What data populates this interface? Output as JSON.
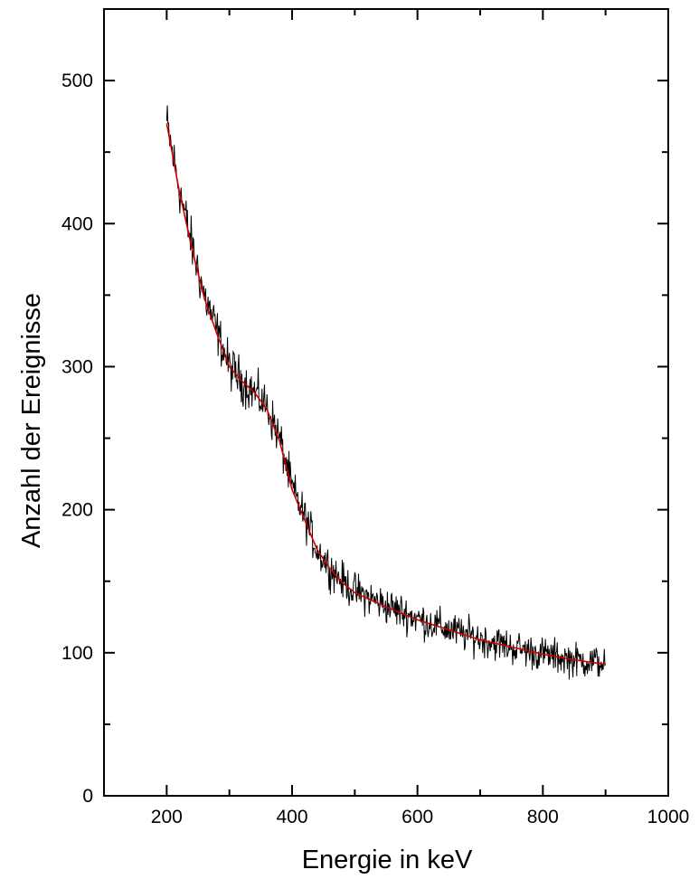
{
  "chart_data": {
    "type": "line",
    "title": "",
    "xlabel": "Energie in keV",
    "ylabel": "Anzahl der Ereignisse",
    "xlim": [
      100,
      1000
    ],
    "ylim": [
      0,
      550
    ],
    "x_ticks": [
      200,
      400,
      600,
      800,
      1000
    ],
    "y_ticks": [
      0,
      100,
      200,
      300,
      400,
      500
    ],
    "x_tick_labels": [
      "200",
      "400",
      "600",
      "800",
      "1000"
    ],
    "y_tick_labels": [
      "0",
      "100",
      "200",
      "300",
      "400",
      "500"
    ],
    "grid": false,
    "legend": "none",
    "series": [
      {
        "style": "noisy-measured",
        "color": "#000000",
        "x_range": [
          200,
          900
        ],
        "x": [
          200,
          220,
          240,
          260,
          280,
          300,
          320,
          340,
          360,
          380,
          400,
          420,
          440,
          460,
          480,
          500,
          550,
          600,
          650,
          700,
          750,
          800,
          850,
          900
        ],
        "values": [
          470,
          425,
          385,
          350,
          325,
          300,
          290,
          282,
          272,
          250,
          215,
          195,
          172,
          160,
          150,
          143,
          133,
          124,
          116,
          110,
          104,
          99,
          95,
          93
        ],
        "noise_amplitude": 18
      },
      {
        "style": "fit",
        "color": "#cc0000",
        "x": [
          200,
          220,
          240,
          260,
          280,
          300,
          320,
          340,
          360,
          380,
          400,
          420,
          440,
          460,
          480,
          500,
          550,
          600,
          650,
          700,
          750,
          800,
          850,
          900
        ],
        "values": [
          470,
          423,
          383,
          348,
          323,
          300,
          290,
          282,
          270,
          248,
          214,
          193,
          172,
          159,
          149,
          142,
          132,
          123,
          116,
          109,
          104,
          99,
          95,
          92
        ]
      }
    ]
  }
}
